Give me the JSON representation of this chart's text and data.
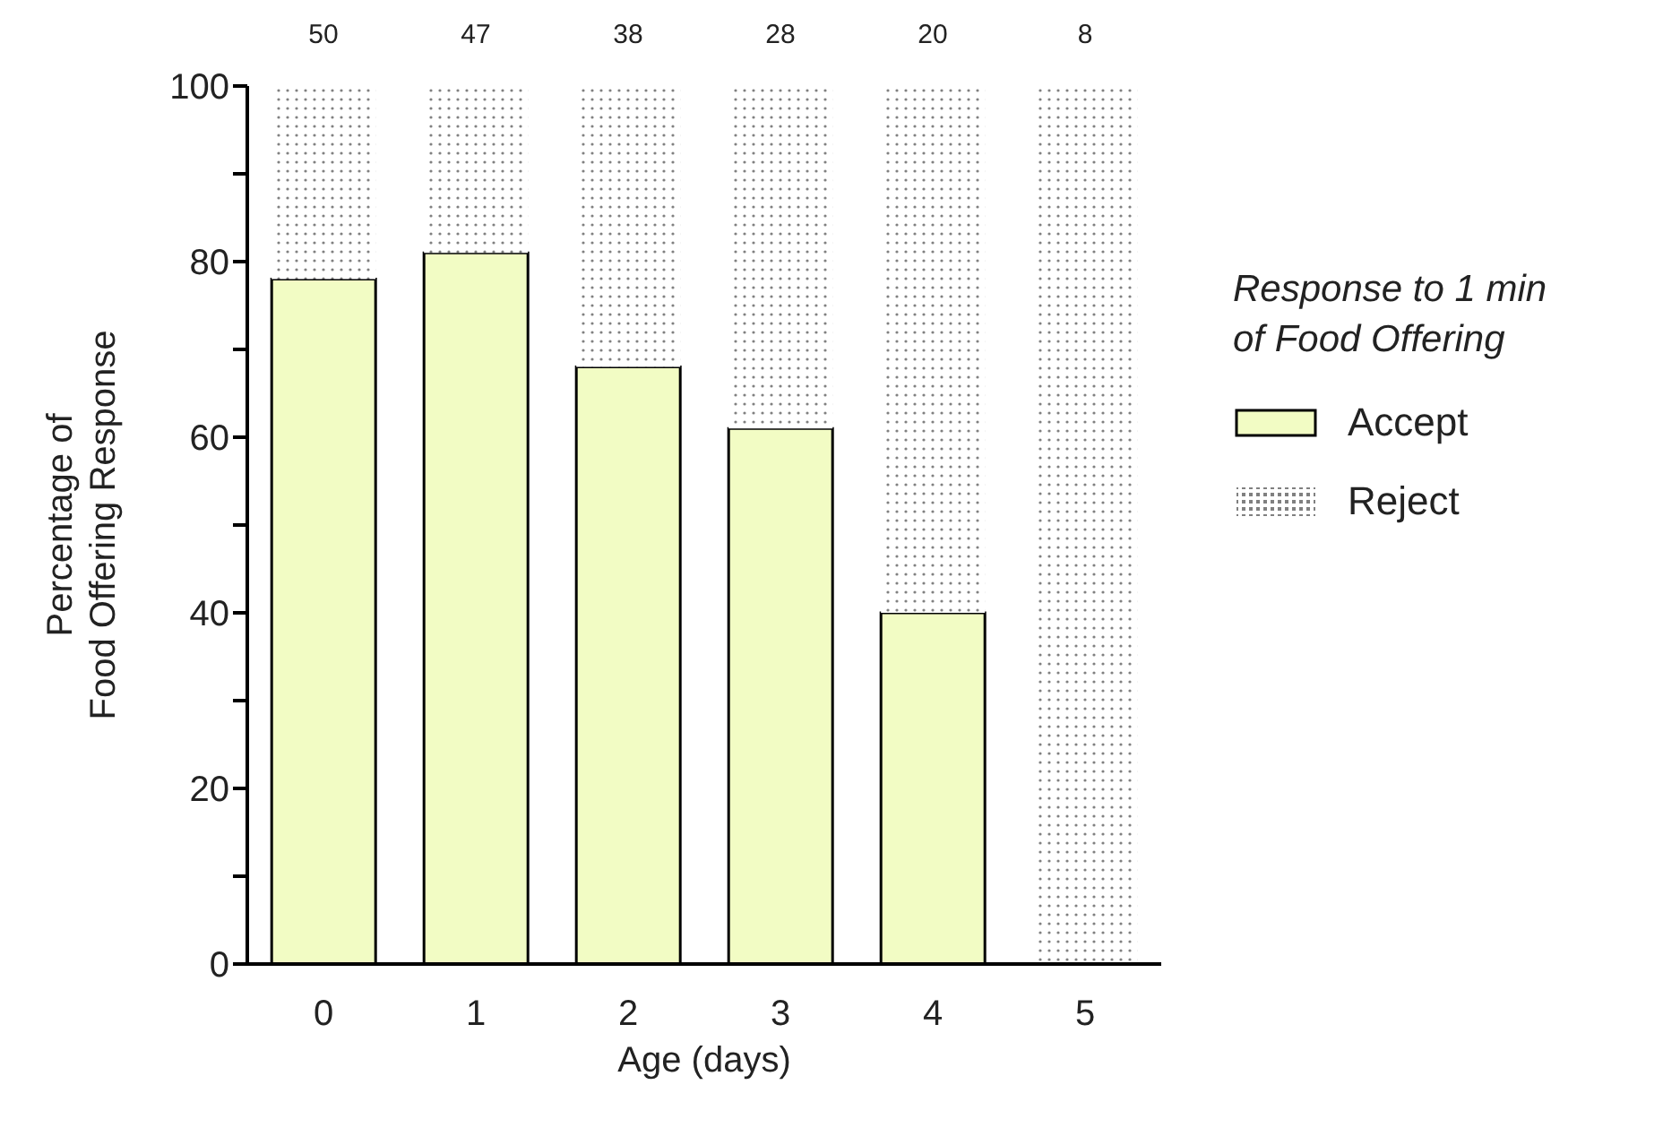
{
  "chart_data": {
    "type": "bar",
    "stacked": true,
    "xlabel": "Age (days)",
    "ylabel": "Percentage of\nFood Offering Response",
    "legend_title": "Response to 1 min\nof Food Offering",
    "legend": "right",
    "categories": [
      "0",
      "1",
      "2",
      "3",
      "4",
      "5"
    ],
    "series": [
      {
        "name": "Accept",
        "color": "#f2fcc4",
        "values": [
          78,
          81,
          68,
          61,
          40,
          0
        ]
      },
      {
        "name": "Reject",
        "color": "#808080",
        "line_style": "dotted",
        "values": [
          22,
          19,
          32,
          39,
          60,
          100
        ]
      }
    ],
    "ylim": [
      0,
      100
    ],
    "yticks": [
      0,
      {
        "value": 10,
        "label": null
      },
      20,
      {
        "value": 30,
        "label": null
      },
      40,
      {
        "value": 50,
        "label": null
      },
      60,
      {
        "value": 70,
        "label": null
      },
      80,
      {
        "value": 90,
        "label": null
      },
      100
    ],
    "annotations": [
      {
        "text": "50",
        "x": "0",
        "y": 100
      },
      {
        "text": "47",
        "x": "1",
        "y": 100
      },
      {
        "text": "38",
        "x": "2",
        "y": 100
      },
      {
        "text": "28",
        "x": "3",
        "y": 100
      },
      {
        "text": "20",
        "x": "4",
        "y": 100
      },
      {
        "text": "8",
        "x": "5",
        "y": 100
      }
    ]
  }
}
